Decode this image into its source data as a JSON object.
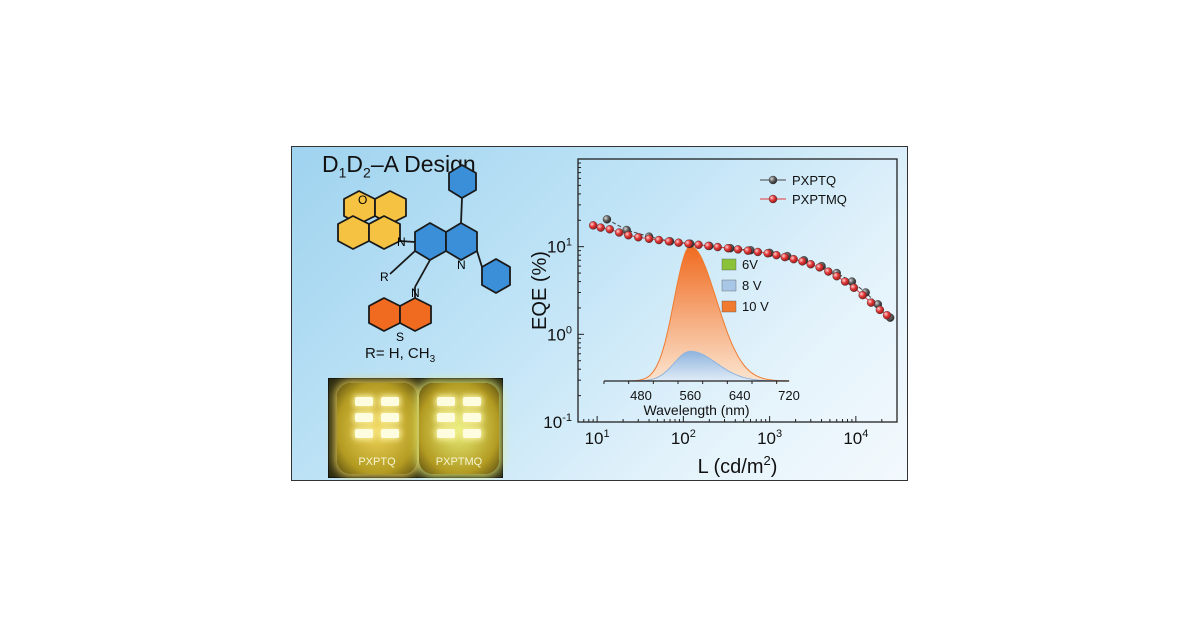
{
  "left_panel": {
    "design_title": {
      "d": "D",
      "sub1": "1",
      "d2": "D",
      "sub2": "2",
      "rest": "–A Design"
    },
    "chem_atoms": {
      "o": "O",
      "n1": "N",
      "n2": "N",
      "s": "S",
      "r": "R",
      "n3": "N"
    },
    "r_substituents": {
      "prefix": "R= H, CH",
      "sub": "3"
    },
    "devices": [
      {
        "label": "PXPTQ",
        "glow": "#f2d65a"
      },
      {
        "label": "PXPTMQ",
        "glow": "#e8f07a"
      }
    ]
  },
  "colors": {
    "phenoxazine": "#f5c242",
    "quinoline": "#3a8fd8",
    "phenothiazine": "#f06a1f",
    "pxptq": "#555555",
    "pxptmq": "#e53b3b",
    "inset_6v": "#8ac23a",
    "inset_8v": "#a8c7e6",
    "inset_10v": "#f07b2f"
  },
  "chart_data": [
    {
      "type": "scatter",
      "title": "",
      "xlabel": "L (cd/m2)",
      "ylabel": "EQE (%)",
      "xscale": "log",
      "yscale": "log",
      "xlim": [
        6,
        30000
      ],
      "ylim": [
        0.1,
        100
      ],
      "x_ticks": [
        10,
        100,
        1000,
        10000
      ],
      "y_ticks": [
        0.1,
        1,
        10
      ],
      "legend_position": "top-right",
      "series": [
        {
          "name": "PXPTQ",
          "x": [
            13,
            22,
            40,
            70,
            120,
            200,
            350,
            600,
            1000,
            1600,
            2500,
            4000,
            6000,
            9000,
            13000,
            18000,
            25000
          ],
          "y": [
            20.5,
            15.5,
            13.0,
            11.5,
            10.8,
            10.2,
            9.6,
            9.1,
            8.5,
            7.8,
            7.0,
            6.0,
            5.0,
            4.0,
            3.0,
            2.2,
            1.55
          ]
        },
        {
          "name": "PXPTMQ",
          "x": [
            9,
            11,
            14,
            18,
            23,
            30,
            40,
            52,
            68,
            88,
            115,
            150,
            195,
            250,
            330,
            430,
            560,
            730,
            950,
            1200,
            1500,
            1900,
            2400,
            3000,
            3800,
            4800,
            6000,
            7500,
            9500,
            12000,
            15000,
            19000,
            23000
          ],
          "y": [
            17.5,
            16.5,
            15.8,
            14.5,
            13.5,
            12.8,
            12.3,
            11.9,
            11.5,
            11.1,
            10.8,
            10.5,
            10.2,
            9.9,
            9.6,
            9.3,
            9.0,
            8.7,
            8.4,
            8.0,
            7.6,
            7.2,
            6.8,
            6.3,
            5.8,
            5.2,
            4.6,
            4.0,
            3.4,
            2.8,
            2.3,
            1.9,
            1.65
          ]
        }
      ]
    },
    {
      "type": "area",
      "title": "",
      "xlabel": "Wavelength (nm)",
      "ylabel": "",
      "xlim": [
        420,
        720
      ],
      "ylim": [
        0,
        1
      ],
      "x_ticks": [
        480,
        560,
        640,
        720
      ],
      "legend_position": "top-right",
      "series": [
        {
          "name": "6V",
          "peak_nm": 560,
          "relative_height": 0.0
        },
        {
          "name": "8 V",
          "peak_nm": 560,
          "relative_height": 0.22
        },
        {
          "name": "10 V",
          "peak_nm": 560,
          "relative_height": 1.0
        }
      ]
    }
  ]
}
